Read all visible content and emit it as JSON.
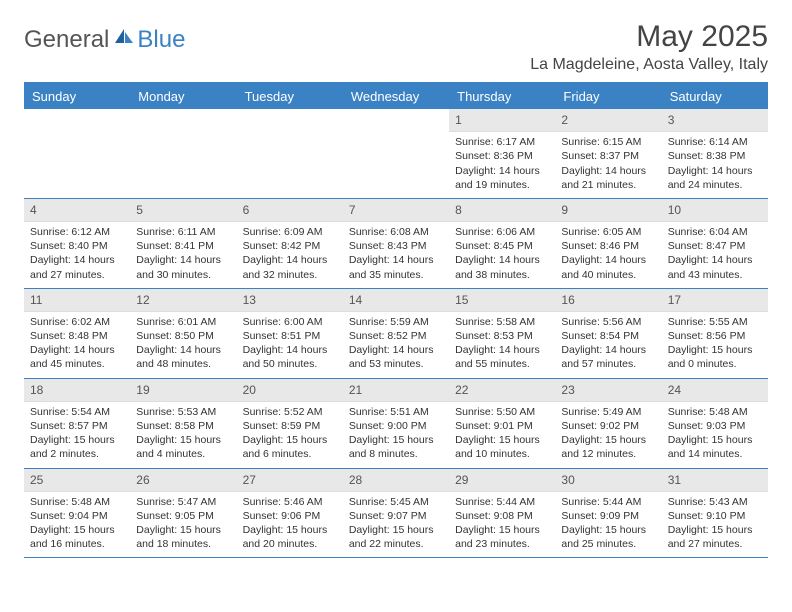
{
  "logo": {
    "text1": "General",
    "text2": "Blue"
  },
  "title": "May 2025",
  "location": "La Magdeleine, Aosta Valley, Italy",
  "colors": {
    "brand": "#3b82c4",
    "text": "#333333",
    "daynum_bg": "#e8e8e8",
    "background": "#ffffff"
  },
  "day_names": [
    "Sunday",
    "Monday",
    "Tuesday",
    "Wednesday",
    "Thursday",
    "Friday",
    "Saturday"
  ],
  "weeks": [
    [
      {
        "n": "",
        "sr": "",
        "ss": "",
        "dl": ""
      },
      {
        "n": "",
        "sr": "",
        "ss": "",
        "dl": ""
      },
      {
        "n": "",
        "sr": "",
        "ss": "",
        "dl": ""
      },
      {
        "n": "",
        "sr": "",
        "ss": "",
        "dl": ""
      },
      {
        "n": "1",
        "sr": "Sunrise: 6:17 AM",
        "ss": "Sunset: 8:36 PM",
        "dl": "Daylight: 14 hours and 19 minutes."
      },
      {
        "n": "2",
        "sr": "Sunrise: 6:15 AM",
        "ss": "Sunset: 8:37 PM",
        "dl": "Daylight: 14 hours and 21 minutes."
      },
      {
        "n": "3",
        "sr": "Sunrise: 6:14 AM",
        "ss": "Sunset: 8:38 PM",
        "dl": "Daylight: 14 hours and 24 minutes."
      }
    ],
    [
      {
        "n": "4",
        "sr": "Sunrise: 6:12 AM",
        "ss": "Sunset: 8:40 PM",
        "dl": "Daylight: 14 hours and 27 minutes."
      },
      {
        "n": "5",
        "sr": "Sunrise: 6:11 AM",
        "ss": "Sunset: 8:41 PM",
        "dl": "Daylight: 14 hours and 30 minutes."
      },
      {
        "n": "6",
        "sr": "Sunrise: 6:09 AM",
        "ss": "Sunset: 8:42 PM",
        "dl": "Daylight: 14 hours and 32 minutes."
      },
      {
        "n": "7",
        "sr": "Sunrise: 6:08 AM",
        "ss": "Sunset: 8:43 PM",
        "dl": "Daylight: 14 hours and 35 minutes."
      },
      {
        "n": "8",
        "sr": "Sunrise: 6:06 AM",
        "ss": "Sunset: 8:45 PM",
        "dl": "Daylight: 14 hours and 38 minutes."
      },
      {
        "n": "9",
        "sr": "Sunrise: 6:05 AM",
        "ss": "Sunset: 8:46 PM",
        "dl": "Daylight: 14 hours and 40 minutes."
      },
      {
        "n": "10",
        "sr": "Sunrise: 6:04 AM",
        "ss": "Sunset: 8:47 PM",
        "dl": "Daylight: 14 hours and 43 minutes."
      }
    ],
    [
      {
        "n": "11",
        "sr": "Sunrise: 6:02 AM",
        "ss": "Sunset: 8:48 PM",
        "dl": "Daylight: 14 hours and 45 minutes."
      },
      {
        "n": "12",
        "sr": "Sunrise: 6:01 AM",
        "ss": "Sunset: 8:50 PM",
        "dl": "Daylight: 14 hours and 48 minutes."
      },
      {
        "n": "13",
        "sr": "Sunrise: 6:00 AM",
        "ss": "Sunset: 8:51 PM",
        "dl": "Daylight: 14 hours and 50 minutes."
      },
      {
        "n": "14",
        "sr": "Sunrise: 5:59 AM",
        "ss": "Sunset: 8:52 PM",
        "dl": "Daylight: 14 hours and 53 minutes."
      },
      {
        "n": "15",
        "sr": "Sunrise: 5:58 AM",
        "ss": "Sunset: 8:53 PM",
        "dl": "Daylight: 14 hours and 55 minutes."
      },
      {
        "n": "16",
        "sr": "Sunrise: 5:56 AM",
        "ss": "Sunset: 8:54 PM",
        "dl": "Daylight: 14 hours and 57 minutes."
      },
      {
        "n": "17",
        "sr": "Sunrise: 5:55 AM",
        "ss": "Sunset: 8:56 PM",
        "dl": "Daylight: 15 hours and 0 minutes."
      }
    ],
    [
      {
        "n": "18",
        "sr": "Sunrise: 5:54 AM",
        "ss": "Sunset: 8:57 PM",
        "dl": "Daylight: 15 hours and 2 minutes."
      },
      {
        "n": "19",
        "sr": "Sunrise: 5:53 AM",
        "ss": "Sunset: 8:58 PM",
        "dl": "Daylight: 15 hours and 4 minutes."
      },
      {
        "n": "20",
        "sr": "Sunrise: 5:52 AM",
        "ss": "Sunset: 8:59 PM",
        "dl": "Daylight: 15 hours and 6 minutes."
      },
      {
        "n": "21",
        "sr": "Sunrise: 5:51 AM",
        "ss": "Sunset: 9:00 PM",
        "dl": "Daylight: 15 hours and 8 minutes."
      },
      {
        "n": "22",
        "sr": "Sunrise: 5:50 AM",
        "ss": "Sunset: 9:01 PM",
        "dl": "Daylight: 15 hours and 10 minutes."
      },
      {
        "n": "23",
        "sr": "Sunrise: 5:49 AM",
        "ss": "Sunset: 9:02 PM",
        "dl": "Daylight: 15 hours and 12 minutes."
      },
      {
        "n": "24",
        "sr": "Sunrise: 5:48 AM",
        "ss": "Sunset: 9:03 PM",
        "dl": "Daylight: 15 hours and 14 minutes."
      }
    ],
    [
      {
        "n": "25",
        "sr": "Sunrise: 5:48 AM",
        "ss": "Sunset: 9:04 PM",
        "dl": "Daylight: 15 hours and 16 minutes."
      },
      {
        "n": "26",
        "sr": "Sunrise: 5:47 AM",
        "ss": "Sunset: 9:05 PM",
        "dl": "Daylight: 15 hours and 18 minutes."
      },
      {
        "n": "27",
        "sr": "Sunrise: 5:46 AM",
        "ss": "Sunset: 9:06 PM",
        "dl": "Daylight: 15 hours and 20 minutes."
      },
      {
        "n": "28",
        "sr": "Sunrise: 5:45 AM",
        "ss": "Sunset: 9:07 PM",
        "dl": "Daylight: 15 hours and 22 minutes."
      },
      {
        "n": "29",
        "sr": "Sunrise: 5:44 AM",
        "ss": "Sunset: 9:08 PM",
        "dl": "Daylight: 15 hours and 23 minutes."
      },
      {
        "n": "30",
        "sr": "Sunrise: 5:44 AM",
        "ss": "Sunset: 9:09 PM",
        "dl": "Daylight: 15 hours and 25 minutes."
      },
      {
        "n": "31",
        "sr": "Sunrise: 5:43 AM",
        "ss": "Sunset: 9:10 PM",
        "dl": "Daylight: 15 hours and 27 minutes."
      }
    ]
  ]
}
